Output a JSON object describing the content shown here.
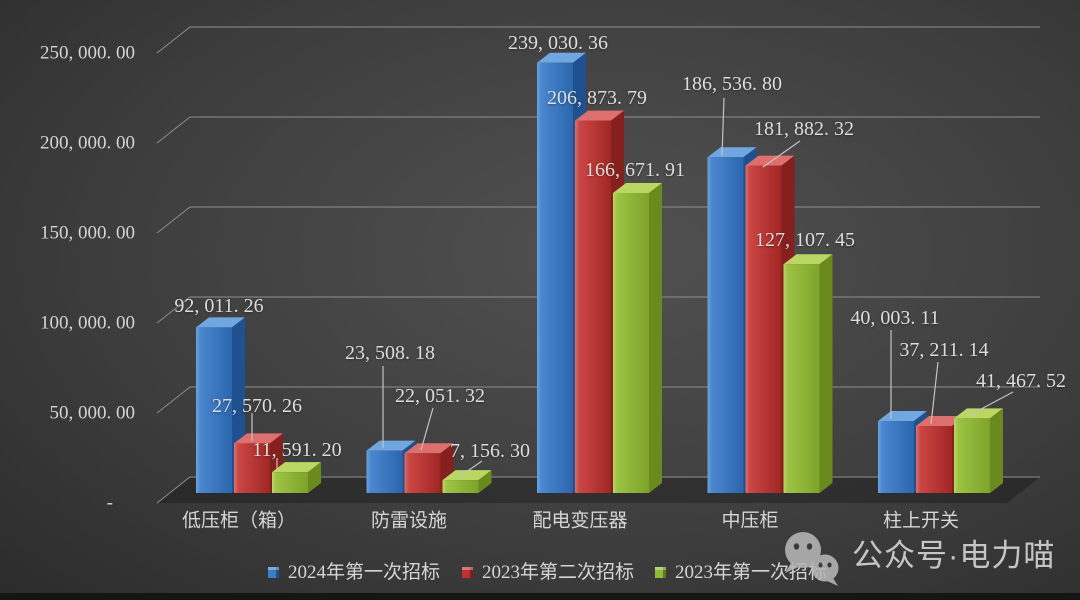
{
  "y_axis": {
    "tick_labels": [
      "250, 000. 00",
      "200, 000. 00",
      "150, 000. 00",
      "100, 000. 00",
      "50, 000. 00",
      "-"
    ],
    "tick_values": [
      250000,
      200000,
      150000,
      100000,
      50000,
      0
    ]
  },
  "legend": [
    {
      "label": "2024年第一次招标",
      "color": "#3a7cc9"
    },
    {
      "label": "2023年第二次招标",
      "color": "#bd3230"
    },
    {
      "label": "2023年第一次招标",
      "color": "#8fba33"
    }
  ],
  "watermark": {
    "text": "公众号·电力喵",
    "icon": "wechat-icon"
  },
  "chart_data": {
    "type": "bar",
    "subtype": "3d-clustered",
    "title": "",
    "xlabel": "",
    "ylabel": "",
    "ylim": [
      0,
      250000
    ],
    "ytick_interval": 50000,
    "grid": true,
    "legend_position": "bottom",
    "categories": [
      "低压柜（箱）",
      "防雷设施",
      "配电变压器",
      "中压柜",
      "柱上开关"
    ],
    "series": [
      {
        "name": "2024年第一次招标",
        "color": "#3a7cc9",
        "values": [
          92011.26,
          23508.18,
          239030.36,
          186536.8,
          40003.11
        ],
        "labels": [
          "92, 011. 26",
          "23, 508. 18",
          "239, 030. 36",
          "186, 536. 80",
          "40, 003. 11"
        ]
      },
      {
        "name": "2023年第二次招标",
        "color": "#bd3230",
        "values": [
          27570.26,
          22051.32,
          206873.79,
          181882.32,
          37211.14
        ],
        "labels": [
          "27, 570. 26",
          "22, 051. 32",
          "206, 873. 79",
          "181, 882. 32",
          "37, 211. 14"
        ]
      },
      {
        "name": "2023年第一次招标",
        "color": "#8fba33",
        "values": [
          11591.2,
          7156.3,
          166671.91,
          127107.45,
          41467.52
        ],
        "labels": [
          "11, 591. 20",
          "7, 156. 30",
          "166, 671. 91",
          "127, 107. 45",
          "41, 467. 52"
        ]
      }
    ]
  }
}
